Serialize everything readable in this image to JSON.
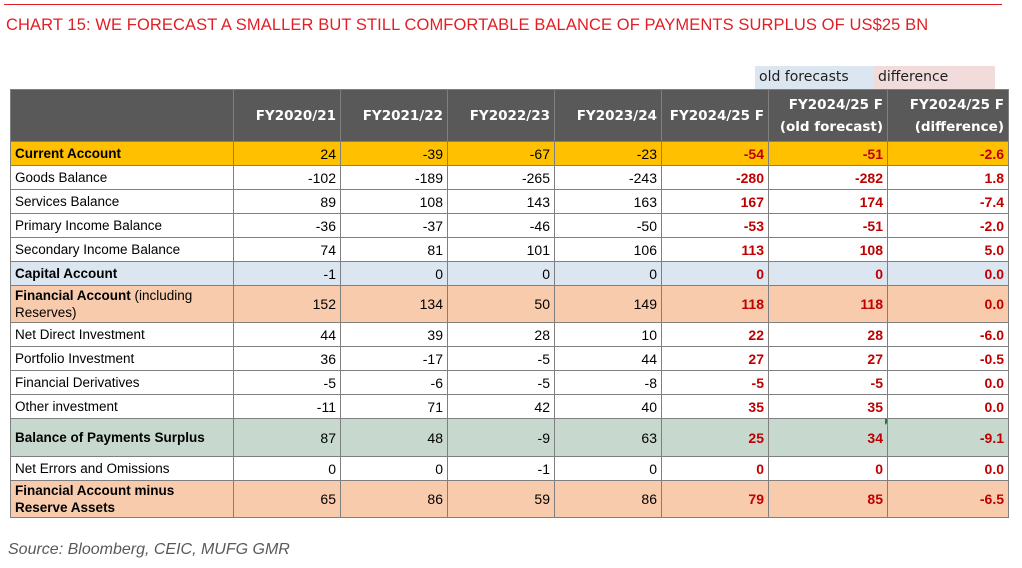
{
  "title": "CHART 15: WE FORECAST A SMALLER BUT STILL COMFORTABLE BALANCE OF PAYMENTS SURPLUS OF US$25 BN",
  "tags": {
    "old_forecasts": "old forecasts",
    "difference": "difference"
  },
  "header": {
    "col0": "",
    "col1": "FY2020/21",
    "col2": "FY2021/22",
    "col3": "FY2022/23",
    "col4": "FY2023/24",
    "col5": "FY2024/25 F",
    "col6_line1": "FY2024/25 F",
    "col6_line2": "(old forecast)",
    "col7_line1": "FY2024/25 F",
    "col7_line2": "(difference)"
  },
  "rows": [
    {
      "label": "Current Account",
      "values": [
        "24",
        "-39",
        "-67",
        "-23",
        "-54",
        "-51",
        "-2.6"
      ]
    },
    {
      "label": "Goods Balance",
      "values": [
        "-102",
        "-189",
        "-265",
        "-243",
        "-280",
        "-282",
        "1.8"
      ]
    },
    {
      "label": "Services Balance",
      "values": [
        "89",
        "108",
        "143",
        "163",
        "167",
        "174",
        "-7.4"
      ]
    },
    {
      "label": "Primary Income Balance",
      "values": [
        "-36",
        "-37",
        "-46",
        "-50",
        "-53",
        "-51",
        "-2.0"
      ]
    },
    {
      "label": "Secondary Income Balance",
      "values": [
        "74",
        "81",
        "101",
        "106",
        "113",
        "108",
        "5.0"
      ]
    },
    {
      "label": "Capital Account",
      "values": [
        "-1",
        "0",
        "0",
        "0",
        "0",
        "0",
        "0.0"
      ]
    },
    {
      "label": "Financial Account",
      "label_suffix": " (including Reserves)",
      "values": [
        "152",
        "134",
        "50",
        "149",
        "118",
        "118",
        "0.0"
      ]
    },
    {
      "label": "Net Direct Investment",
      "values": [
        "44",
        "39",
        "28",
        "10",
        "22",
        "28",
        "-6.0"
      ]
    },
    {
      "label": "Portfolio Investment",
      "values": [
        "36",
        "-17",
        "-5",
        "44",
        "27",
        "27",
        "-0.5"
      ]
    },
    {
      "label": "Financial Derivatives",
      "values": [
        "-5",
        "-6",
        "-5",
        "-8",
        "-5",
        "-5",
        "0.0"
      ]
    },
    {
      "label": "Other investment",
      "values": [
        "-11",
        "71",
        "42",
        "40",
        "35",
        "35",
        "0.0"
      ]
    },
    {
      "label": "Balance of Payments Surplus",
      "values": [
        "87",
        "48",
        "-9",
        "63",
        "25",
        "34",
        "-9.1"
      ]
    },
    {
      "label": "Net Errors and Omissions",
      "values": [
        "0",
        "0",
        "-1",
        "0",
        "0",
        "0",
        "0.0"
      ]
    },
    {
      "label": "Financial Account minus Reserve Assets",
      "values": [
        "65",
        "86",
        "59",
        "86",
        "79",
        "85",
        "-6.5"
      ]
    }
  ],
  "source": "Source: Bloomberg, CEIC, MUFG GMR",
  "colors": {
    "title_red": "#e31e24",
    "header_grey": "#595959",
    "current_account_orange": "#ffc000",
    "capital_account_blue": "#dce6f1",
    "financial_account_peach": "#f8cbad",
    "bop_surplus_green": "#c7d9cf",
    "forecast_red": "#c00000",
    "difference_pink": "#f2dcdb"
  }
}
